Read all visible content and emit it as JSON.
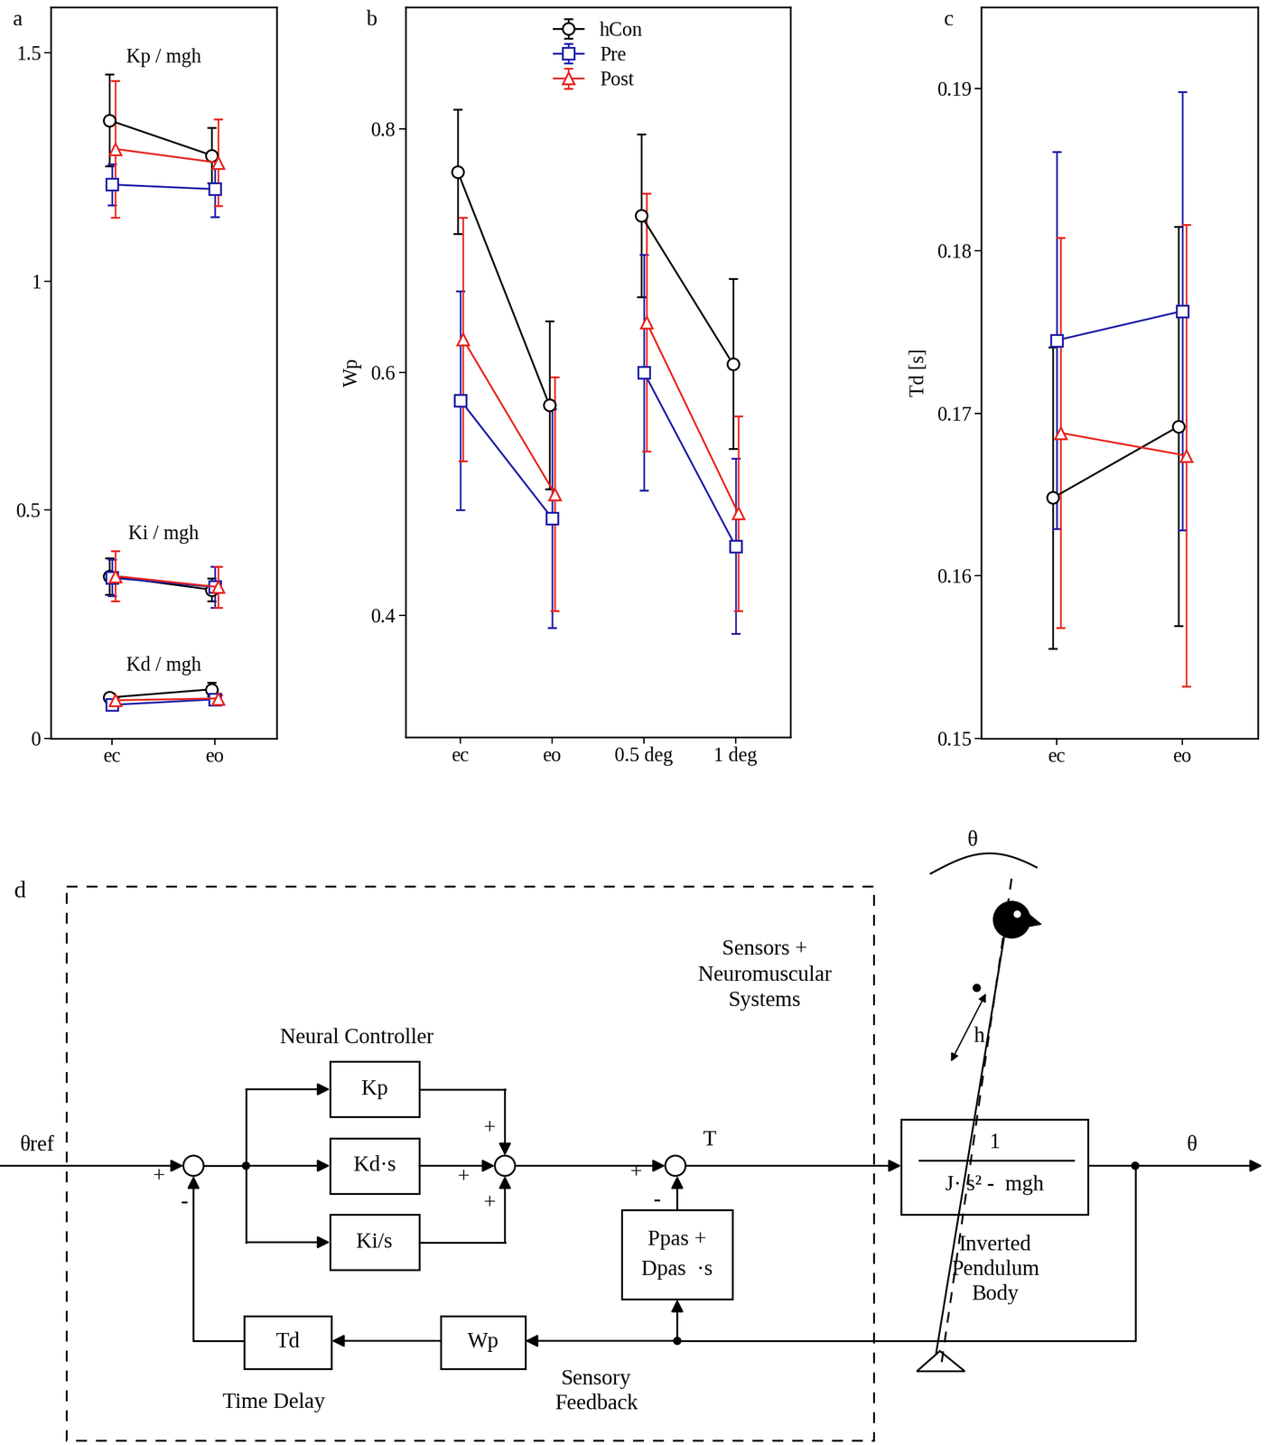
{
  "chart_data": [
    {
      "type": "line",
      "title": "a",
      "categories": [
        "ec",
        "eo"
      ],
      "ylim": [
        0,
        1.6
      ],
      "yticks": [
        0,
        0.5,
        1,
        1.5
      ],
      "groups": [
        {
          "label": "Kp / mgh",
          "categories": [
            "ec",
            "eo"
          ],
          "series": [
            {
              "name": "hCon",
              "color": "#000000",
              "marker": "circle",
              "values": [
                1.353,
                1.276
              ],
              "errors": [
                0.1,
                0.06
              ]
            },
            {
              "name": "Pre",
              "color": "#1a1aa6",
              "marker": "square",
              "values": [
                1.212,
                1.202
              ],
              "errors": [
                0.045,
                0.06
              ]
            },
            {
              "name": "Post",
              "color": "#e8231d",
              "marker": "triangle",
              "values": [
                1.29,
                1.26
              ],
              "errors": [
                0.15,
                0.095
              ]
            }
          ]
        },
        {
          "label": "Ki / mgh",
          "categories": [
            "ec",
            "eo"
          ],
          "series": [
            {
              "name": "hCon",
              "color": "#000000",
              "marker": "circle",
              "values": [
                0.355,
                0.325
              ],
              "errors": [
                0.04,
                0.025
              ]
            },
            {
              "name": "Pre",
              "color": "#1a1aa6",
              "marker": "square",
              "values": [
                0.351,
                0.331
              ],
              "errors": [
                0.04,
                0.045
              ]
            },
            {
              "name": "Post",
              "color": "#e8231d",
              "marker": "triangle",
              "values": [
                0.355,
                0.331
              ],
              "errors": [
                0.055,
                0.045
              ]
            }
          ]
        },
        {
          "label": "Kd / mgh",
          "categories": [
            "ec",
            "eo"
          ],
          "series": [
            {
              "name": "hCon",
              "color": "#000000",
              "marker": "circle",
              "values": [
                0.089,
                0.107
              ],
              "errors": [
                0.01,
                0.015
              ]
            },
            {
              "name": "Pre",
              "color": "#1a1aa6",
              "marker": "square",
              "values": [
                0.073,
                0.085
              ],
              "errors": [
                0.006,
                0.008
              ]
            },
            {
              "name": "Post",
              "color": "#e8231d",
              "marker": "triangle",
              "values": [
                0.083,
                0.087
              ],
              "errors": [
                0.006,
                0.008
              ]
            }
          ]
        }
      ]
    },
    {
      "type": "line",
      "title": "b",
      "ylabel": "Wp",
      "categories": [
        "ec",
        "eo",
        "0.5 deg",
        "1 deg"
      ],
      "ylim": [
        0.3,
        0.9
      ],
      "yticks": [
        0.4,
        0.6,
        0.8
      ],
      "legend": "upper center",
      "groups": [
        {
          "categories": [
            "ec",
            "eo"
          ],
          "series": [
            {
              "name": "hCon",
              "color": "#000000",
              "marker": "circle",
              "values": [
                0.765,
                0.573
              ],
              "errors": [
                0.051,
                0.069
              ]
            },
            {
              "name": "Pre",
              "color": "#1a1aa6",
              "marker": "square",
              "values": [
                0.577,
                0.48
              ],
              "errors": [
                0.09,
                0.09
              ]
            },
            {
              "name": "Post",
              "color": "#e8231d",
              "marker": "triangle",
              "values": [
                0.627,
                0.5
              ],
              "errors": [
                0.1,
                0.096
              ]
            }
          ]
        },
        {
          "categories": [
            "0.5 deg",
            "1 deg"
          ],
          "series": [
            {
              "name": "hCon",
              "color": "#000000",
              "marker": "circle",
              "values": [
                0.729,
                0.607
              ],
              "errors": [
                0.067,
                0.07
              ]
            },
            {
              "name": "Pre",
              "color": "#1a1aa6",
              "marker": "square",
              "values": [
                0.6,
                0.457
              ],
              "errors": [
                0.097,
                0.072
              ]
            },
            {
              "name": "Post",
              "color": "#e8231d",
              "marker": "triangle",
              "values": [
                0.641,
                0.484
              ],
              "errors": [
                0.106,
                0.08
              ]
            }
          ]
        }
      ]
    },
    {
      "type": "line",
      "title": "c",
      "ylabel": "Td [s]",
      "categories": [
        "ec",
        "eo"
      ],
      "ylim": [
        0.15,
        0.195
      ],
      "yticks": [
        0.15,
        0.16,
        0.17,
        0.18,
        0.19
      ],
      "groups": [
        {
          "categories": [
            "ec",
            "eo"
          ],
          "series": [
            {
              "name": "hCon",
              "color": "#000000",
              "marker": "circle",
              "values": [
                0.1648,
                0.1692
              ],
              "errors": [
                0.0093,
                0.0123
              ]
            },
            {
              "name": "Pre",
              "color": "#1a1aa6",
              "marker": "square",
              "values": [
                0.1745,
                0.1763
              ],
              "errors": [
                0.0116,
                0.0135
              ]
            },
            {
              "name": "Post",
              "color": "#e8231d",
              "marker": "triangle",
              "values": [
                0.1688,
                0.1674
              ],
              "errors": [
                0.012,
                0.0142
              ]
            }
          ]
        }
      ]
    }
  ],
  "diagram": {
    "title": "d",
    "box_label": "Sensors +\nNeuromuscular\nSystems",
    "controller_label": "Neural Controller",
    "input": "θref",
    "output": "θ",
    "torque": "T",
    "blocks": {
      "kp": "Kp",
      "kd": "Kd·s",
      "ki": "Ki/s",
      "passive": "Ppas +\nDpas  ·s",
      "delay": "Td",
      "gain": "Wp",
      "plant_num": "1",
      "plant_den": "J· s² -  mgh"
    },
    "signs": {
      "error_sum": [
        "+",
        "-"
      ],
      "pid_sum": [
        "+",
        "+",
        "+"
      ],
      "torque_sum": [
        "+",
        "-"
      ]
    },
    "delay_label": "Time Delay",
    "feedback_label": "Sensory\nFeedback",
    "plant_label": "Inverted\nPendulum\nBody",
    "angle": "θ",
    "length": "h"
  }
}
